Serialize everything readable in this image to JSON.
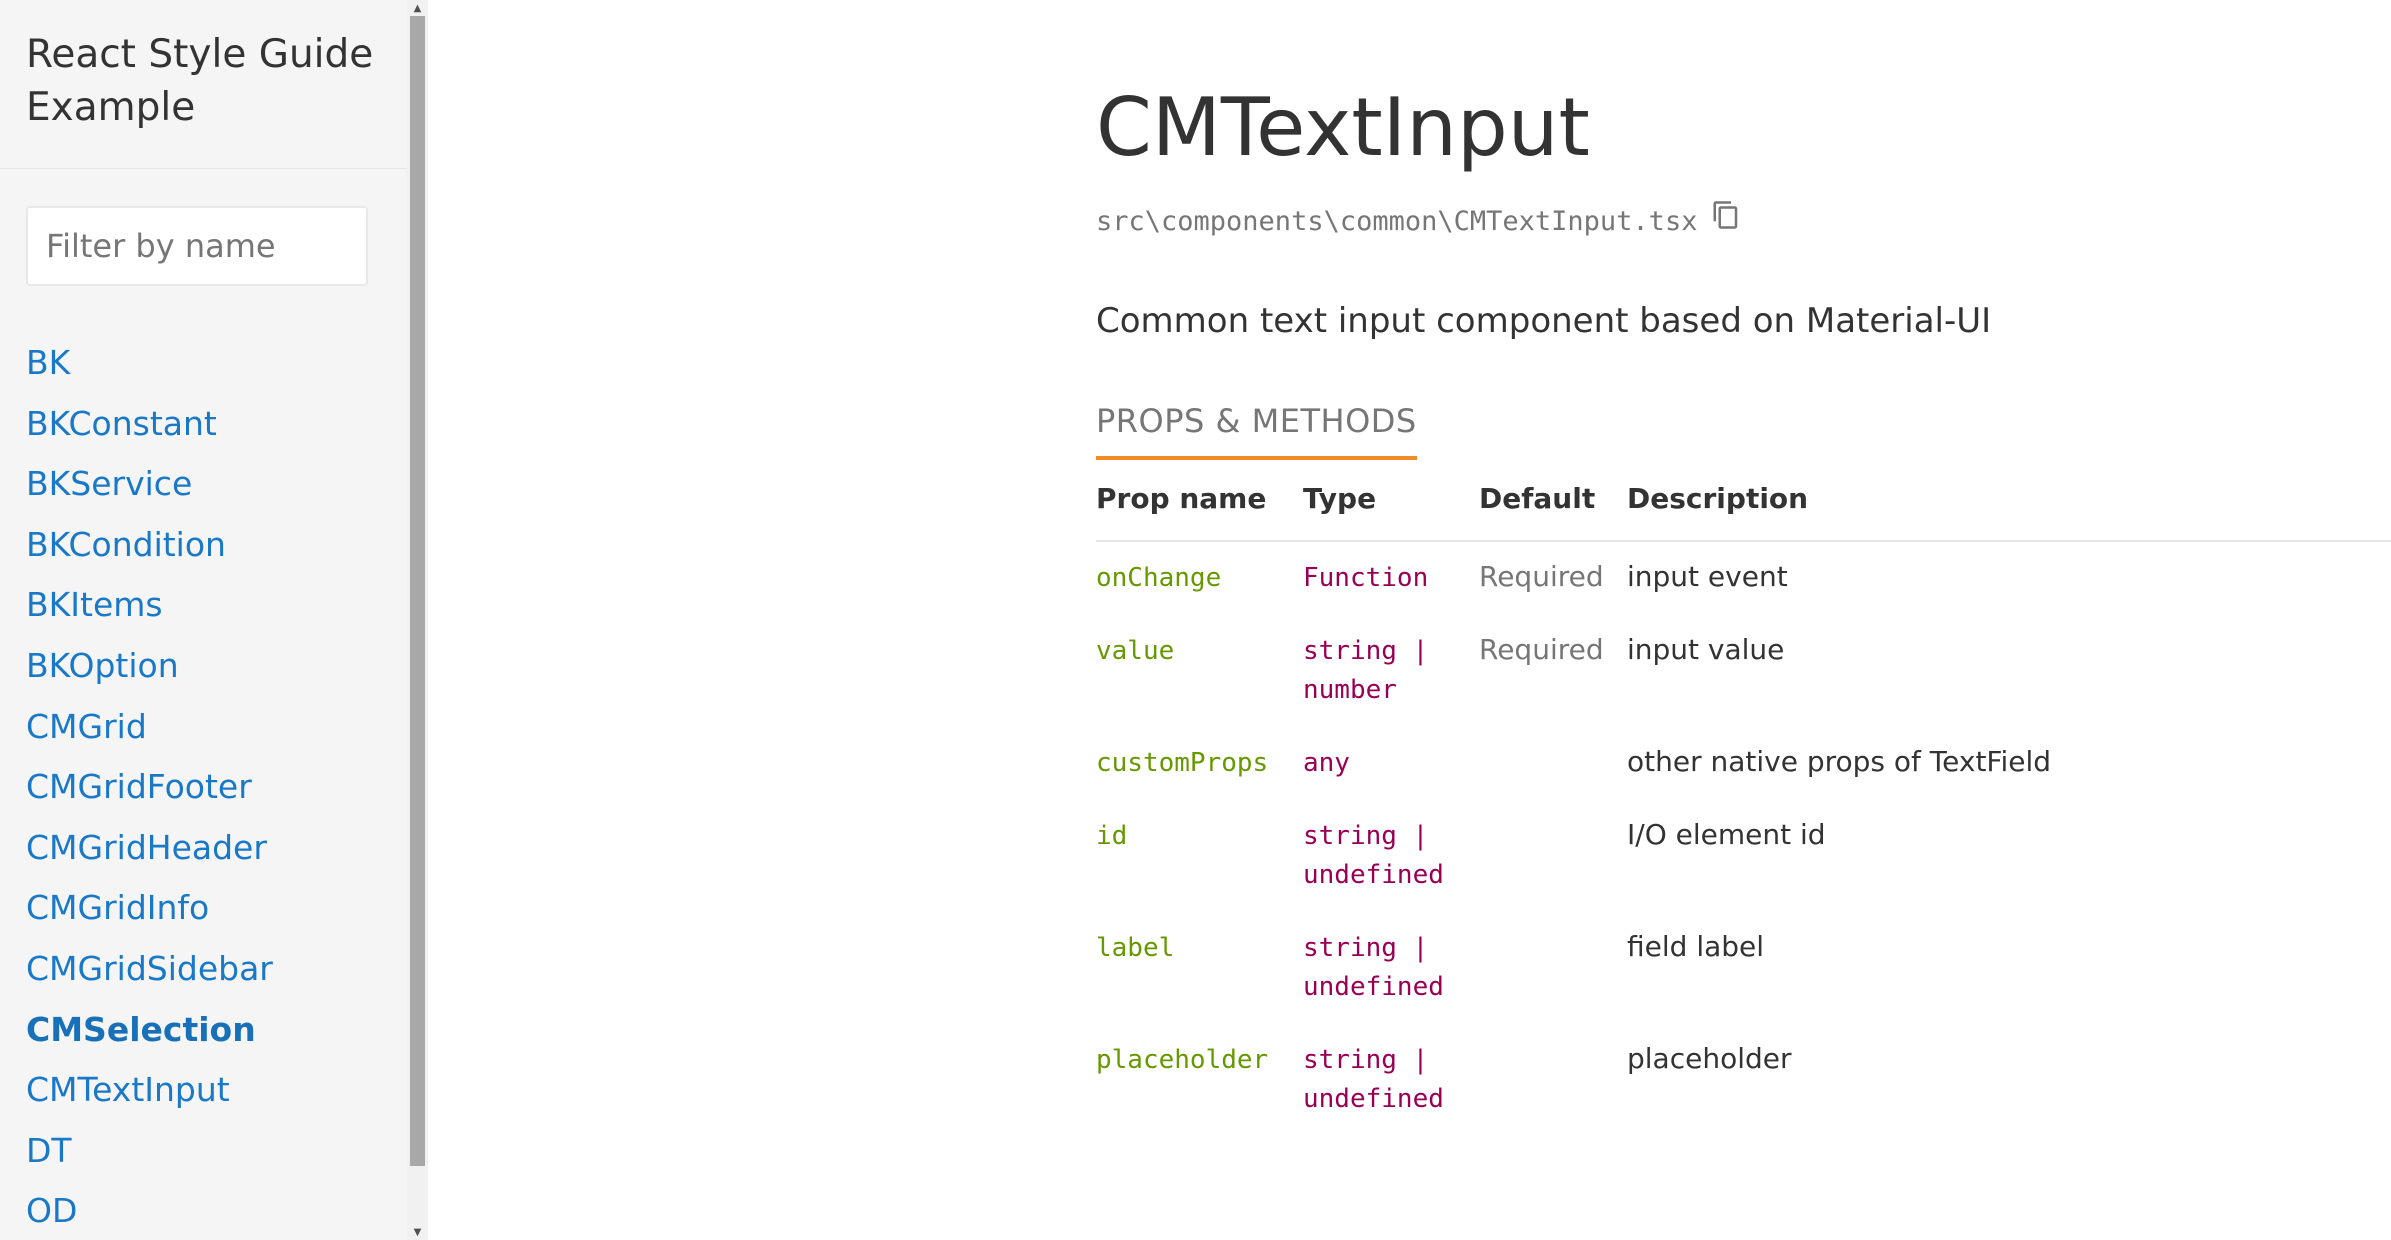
{
  "sidebar": {
    "title": "React Style Guide Example",
    "filter_placeholder": "Filter by name",
    "items": [
      {
        "label": "BK",
        "active": false
      },
      {
        "label": "BKConstant",
        "active": false
      },
      {
        "label": "BKService",
        "active": false
      },
      {
        "label": "BKCondition",
        "active": false
      },
      {
        "label": "BKItems",
        "active": false
      },
      {
        "label": "BKOption",
        "active": false
      },
      {
        "label": "CMGrid",
        "active": false
      },
      {
        "label": "CMGridFooter",
        "active": false
      },
      {
        "label": "CMGridHeader",
        "active": false
      },
      {
        "label": "CMGridInfo",
        "active": false
      },
      {
        "label": "CMGridSidebar",
        "active": false
      },
      {
        "label": "CMSelection",
        "active": true
      },
      {
        "label": "CMTextInput",
        "active": false
      },
      {
        "label": "DT",
        "active": false
      },
      {
        "label": "OD",
        "active": false
      }
    ]
  },
  "main": {
    "title": "CMTextInput",
    "file_path": "src\\components\\common\\CMTextInput.tsx",
    "description": "Common text input component based on Material-UI",
    "section_heading": "PROPS & METHODS",
    "table": {
      "headers": {
        "name": "Prop name",
        "type": "Type",
        "default": "Default",
        "description": "Description"
      },
      "rows": [
        {
          "name": "onChange",
          "type": "Function",
          "default": "Required",
          "description": "input event"
        },
        {
          "name": "value",
          "type": "string | number",
          "default": "Required",
          "description": "input value"
        },
        {
          "name": "customProps",
          "type": "any",
          "default": "",
          "description": "other native props of TextField"
        },
        {
          "name": "id",
          "type": "string | undefined",
          "default": "",
          "description": "I/O element id"
        },
        {
          "name": "label",
          "type": "string | undefined",
          "default": "",
          "description": "field label"
        },
        {
          "name": "placeholder",
          "type": "string | undefined",
          "default": "",
          "description": "placeholder"
        }
      ]
    }
  },
  "icons": {
    "copy": "copy-icon",
    "scroll_up": "arrow-up-icon",
    "scroll_down": "arrow-down-icon"
  },
  "colors": {
    "link": "#1978c8",
    "accent_underline": "#f28a25",
    "prop_name": "#669900",
    "prop_type": "#990055",
    "muted": "#767676",
    "sidebar_bg": "#f5f5f5"
  }
}
